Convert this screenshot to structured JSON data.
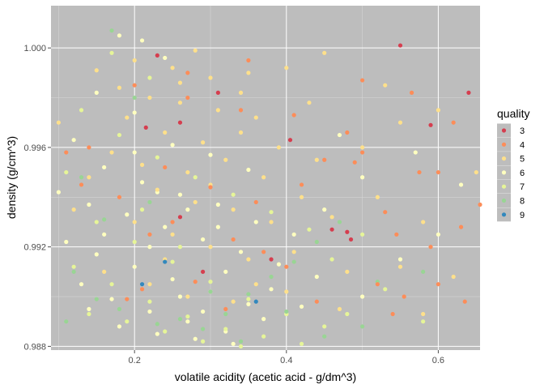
{
  "chart_data": {
    "type": "scatter",
    "title": "",
    "xlabel": "volatile acidity (acetic acid - g/dm^3)",
    "ylabel": "density (g/cm^3)",
    "xlim": [
      0.09,
      0.655
    ],
    "ylim": [
      0.98785,
      1.0017
    ],
    "x_ticks": [
      0.2,
      0.4,
      0.6
    ],
    "x_tick_labels": [
      "0.2",
      "0.4",
      "0.6"
    ],
    "x_minor_ticks": [
      0.1,
      0.3,
      0.5
    ],
    "y_ticks": [
      0.988,
      0.992,
      0.996,
      1.0
    ],
    "y_tick_labels": [
      "0.988",
      "0.992",
      "0.996",
      "1.000"
    ],
    "y_minor_ticks": [
      0.99,
      0.994,
      0.998
    ],
    "grid": true,
    "panel_background": "#bdbdbd",
    "legend": {
      "title": "quality",
      "placement": "right",
      "entries": [
        {
          "label": "3",
          "color": "#d53e4f"
        },
        {
          "label": "4",
          "color": "#fc8d59"
        },
        {
          "label": "5",
          "color": "#fee08b"
        },
        {
          "label": "6",
          "color": "#ffffbf"
        },
        {
          "label": "7",
          "color": "#e6f598"
        },
        {
          "label": "8",
          "color": "#99d594"
        },
        {
          "label": "9",
          "color": "#3288bd"
        }
      ]
    },
    "series": [
      {
        "name": "3",
        "points": [
          [
            0.23,
            0.9997
          ],
          [
            0.26,
            0.997
          ],
          [
            0.215,
            0.9968
          ],
          [
            0.31,
            0.9982
          ],
          [
            0.405,
            0.9963
          ],
          [
            0.55,
            1.0001
          ],
          [
            0.59,
            0.9969
          ],
          [
            0.64,
            0.9982
          ],
          [
            0.26,
            0.9932
          ],
          [
            0.48,
            0.9926
          ],
          [
            0.46,
            0.9927
          ],
          [
            0.485,
            0.9923
          ],
          [
            0.38,
            0.9915
          ],
          [
            0.29,
            0.991
          ]
        ]
      },
      {
        "name": "4",
        "points": [
          [
            0.565,
            0.9982
          ],
          [
            0.62,
            0.997
          ],
          [
            0.6,
            0.995
          ],
          [
            0.575,
            0.995
          ],
          [
            0.53,
            0.9934
          ],
          [
            0.49,
            0.9954
          ],
          [
            0.45,
            0.9955
          ],
          [
            0.52,
            0.9905
          ],
          [
            0.555,
            0.99
          ],
          [
            0.635,
            0.9898
          ],
          [
            0.59,
            0.992
          ],
          [
            0.63,
            0.9928
          ],
          [
            0.655,
            0.9937
          ],
          [
            0.48,
            0.9966
          ],
          [
            0.41,
            0.9973
          ],
          [
            0.34,
            0.9975
          ],
          [
            0.27,
            0.998
          ],
          [
            0.2,
            0.9985
          ],
          [
            0.14,
            0.996
          ],
          [
            0.11,
            0.9958
          ],
          [
            0.13,
            0.9945
          ],
          [
            0.18,
            0.994
          ],
          [
            0.24,
            0.9952
          ],
          [
            0.3,
            0.9944
          ],
          [
            0.36,
            0.9938
          ],
          [
            0.42,
            0.9945
          ],
          [
            0.25,
            0.993
          ],
          [
            0.22,
            0.9925
          ],
          [
            0.33,
            0.9923
          ],
          [
            0.37,
            0.9918
          ],
          [
            0.4,
            0.9912
          ],
          [
            0.28,
            0.9906
          ],
          [
            0.21,
            0.9903
          ],
          [
            0.19,
            0.9899
          ],
          [
            0.32,
            0.9895
          ],
          [
            0.44,
            0.9898
          ],
          [
            0.27,
            0.999
          ],
          [
            0.35,
            0.9995
          ],
          [
            0.5,
            0.9987
          ],
          [
            0.545,
            0.9925
          ],
          [
            0.6,
            0.9905
          ],
          [
            0.54,
            0.9893
          ],
          [
            0.5,
            0.9958
          ]
        ]
      },
      {
        "name": "5",
        "points": [
          [
            0.15,
            0.9991
          ],
          [
            0.2,
            0.9995
          ],
          [
            0.25,
            0.9992
          ],
          [
            0.3,
            0.9988
          ],
          [
            0.35,
            0.999
          ],
          [
            0.4,
            0.9992
          ],
          [
            0.45,
            0.9998
          ],
          [
            0.28,
            0.9999
          ],
          [
            0.22,
            0.998
          ],
          [
            0.26,
            0.9978
          ],
          [
            0.31,
            0.9975
          ],
          [
            0.36,
            0.9972
          ],
          [
            0.19,
            0.9972
          ],
          [
            0.24,
            0.9966
          ],
          [
            0.29,
            0.9962
          ],
          [
            0.34,
            0.9966
          ],
          [
            0.39,
            0.996
          ],
          [
            0.44,
            0.9955
          ],
          [
            0.5,
            0.996
          ],
          [
            0.55,
            0.997
          ],
          [
            0.6,
            0.9975
          ],
          [
            0.17,
            0.9958
          ],
          [
            0.21,
            0.9953
          ],
          [
            0.27,
            0.995
          ],
          [
            0.32,
            0.9955
          ],
          [
            0.37,
            0.9948
          ],
          [
            0.42,
            0.994
          ],
          [
            0.14,
            0.9948
          ],
          [
            0.23,
            0.9943
          ],
          [
            0.28,
            0.9938
          ],
          [
            0.33,
            0.9935
          ],
          [
            0.38,
            0.993
          ],
          [
            0.46,
            0.9932
          ],
          [
            0.52,
            0.994
          ],
          [
            0.58,
            0.993
          ],
          [
            0.12,
            0.9935
          ],
          [
            0.2,
            0.993
          ],
          [
            0.25,
            0.9925
          ],
          [
            0.3,
            0.992
          ],
          [
            0.35,
            0.9915
          ],
          [
            0.41,
            0.9918
          ],
          [
            0.48,
            0.991
          ],
          [
            0.55,
            0.9912
          ],
          [
            0.62,
            0.9908
          ],
          [
            0.16,
            0.991
          ],
          [
            0.22,
            0.9905
          ],
          [
            0.27,
            0.99
          ],
          [
            0.33,
            0.9898
          ],
          [
            0.4,
            0.9902
          ],
          [
            0.47,
            0.9895
          ],
          [
            0.58,
            0.9893
          ],
          [
            0.1,
            0.997
          ],
          [
            0.65,
            0.995
          ],
          [
            0.26,
            0.9986
          ],
          [
            0.18,
            0.9984
          ],
          [
            0.34,
            0.9982
          ],
          [
            0.43,
            0.9978
          ],
          [
            0.53,
            0.9985
          ],
          [
            0.3,
            0.9945
          ],
          [
            0.24,
            0.9915
          ],
          [
            0.36,
            0.9905
          ]
        ]
      },
      {
        "name": "6",
        "points": [
          [
            0.18,
            1.0005
          ],
          [
            0.21,
            1.0003
          ],
          [
            0.24,
            0.9996
          ],
          [
            0.15,
            0.9982
          ],
          [
            0.2,
            0.9974
          ],
          [
            0.25,
            0.9961
          ],
          [
            0.3,
            0.9957
          ],
          [
            0.35,
            0.9951
          ],
          [
            0.12,
            0.9963
          ],
          [
            0.16,
            0.9952
          ],
          [
            0.21,
            0.9946
          ],
          [
            0.26,
            0.9941
          ],
          [
            0.31,
            0.9937
          ],
          [
            0.36,
            0.993
          ],
          [
            0.41,
            0.9925
          ],
          [
            0.1,
            0.9942
          ],
          [
            0.14,
            0.9937
          ],
          [
            0.19,
            0.9933
          ],
          [
            0.24,
            0.9928
          ],
          [
            0.29,
            0.9923
          ],
          [
            0.34,
            0.9918
          ],
          [
            0.39,
            0.9913
          ],
          [
            0.44,
            0.9908
          ],
          [
            0.11,
            0.9922
          ],
          [
            0.15,
            0.9917
          ],
          [
            0.2,
            0.9912
          ],
          [
            0.25,
            0.9907
          ],
          [
            0.3,
            0.9902
          ],
          [
            0.35,
            0.9897
          ],
          [
            0.4,
            0.9893
          ],
          [
            0.13,
            0.9905
          ],
          [
            0.17,
            0.9899
          ],
          [
            0.22,
            0.9894
          ],
          [
            0.27,
            0.989
          ],
          [
            0.32,
            0.9886
          ],
          [
            0.37,
            0.9891
          ],
          [
            0.42,
            0.9896
          ],
          [
            0.18,
            0.9888
          ],
          [
            0.23,
            0.9885
          ],
          [
            0.28,
            0.9883
          ],
          [
            0.33,
            0.9881
          ],
          [
            0.5,
            0.99
          ],
          [
            0.55,
            0.9915
          ],
          [
            0.6,
            0.9925
          ],
          [
            0.45,
            0.9935
          ],
          [
            0.5,
            0.9948
          ],
          [
            0.47,
            0.9965
          ],
          [
            0.57,
            0.9958
          ],
          [
            0.63,
            0.9945
          ],
          [
            0.22,
            0.992
          ],
          [
            0.27,
            0.9935
          ],
          [
            0.32,
            0.991
          ],
          [
            0.16,
            0.9925
          ],
          [
            0.29,
            0.9894
          ],
          [
            0.38,
            0.9903
          ],
          [
            0.2,
            0.9958
          ],
          [
            0.26,
            0.99
          ],
          [
            0.23,
            0.9942
          ],
          [
            0.31,
            0.9928
          ],
          [
            0.14,
            0.9895
          ]
        ]
      },
      {
        "name": "7",
        "points": [
          [
            0.17,
            0.9998
          ],
          [
            0.22,
            0.9988
          ],
          [
            0.13,
            0.9975
          ],
          [
            0.18,
            0.9965
          ],
          [
            0.23,
            0.9956
          ],
          [
            0.28,
            0.9948
          ],
          [
            0.33,
            0.9941
          ],
          [
            0.38,
            0.9934
          ],
          [
            0.43,
            0.9927
          ],
          [
            0.11,
            0.995
          ],
          [
            0.15,
            0.993
          ],
          [
            0.2,
            0.9922
          ],
          [
            0.25,
            0.9914
          ],
          [
            0.3,
            0.9906
          ],
          [
            0.35,
            0.9899
          ],
          [
            0.4,
            0.9893
          ],
          [
            0.45,
            0.9888
          ],
          [
            0.12,
            0.9912
          ],
          [
            0.17,
            0.9905
          ],
          [
            0.22,
            0.9898
          ],
          [
            0.27,
            0.9892
          ],
          [
            0.32,
            0.9887
          ],
          [
            0.37,
            0.9884
          ],
          [
            0.42,
            0.9881
          ],
          [
            0.19,
            0.989
          ],
          [
            0.24,
            0.9886
          ],
          [
            0.29,
            0.9882
          ],
          [
            0.34,
            0.988
          ],
          [
            0.48,
            0.9893
          ],
          [
            0.53,
            0.9903
          ],
          [
            0.58,
            0.989
          ],
          [
            0.46,
            0.9915
          ],
          [
            0.5,
            0.9925
          ],
          [
            0.14,
            0.9893
          ],
          [
            0.21,
            0.9935
          ],
          [
            0.26,
            0.992
          ]
        ]
      },
      {
        "name": "8",
        "points": [
          [
            0.17,
            1.0007
          ],
          [
            0.2,
            0.998
          ],
          [
            0.13,
            0.9948
          ],
          [
            0.16,
            0.9931
          ],
          [
            0.12,
            0.991
          ],
          [
            0.18,
            0.9895
          ],
          [
            0.23,
            0.9889
          ],
          [
            0.26,
            0.9891
          ],
          [
            0.29,
            0.9887
          ],
          [
            0.32,
            0.9893
          ],
          [
            0.35,
            0.9901
          ],
          [
            0.38,
            0.9908
          ],
          [
            0.41,
            0.9914
          ],
          [
            0.44,
            0.9922
          ],
          [
            0.47,
            0.993
          ],
          [
            0.52,
            0.9906
          ],
          [
            0.5,
            0.9888
          ],
          [
            0.45,
            0.9884
          ],
          [
            0.4,
            0.9894
          ],
          [
            0.22,
            0.9938
          ],
          [
            0.15,
            0.9899
          ],
          [
            0.11,
            0.989
          ],
          [
            0.34,
            0.9882
          ],
          [
            0.58,
            0.991
          ],
          [
            0.3,
            0.9902
          ]
        ]
      },
      {
        "name": "9",
        "points": [
          [
            0.36,
            0.9898
          ],
          [
            0.21,
            0.9905
          ],
          [
            0.24,
            0.9914
          ]
        ]
      }
    ]
  }
}
